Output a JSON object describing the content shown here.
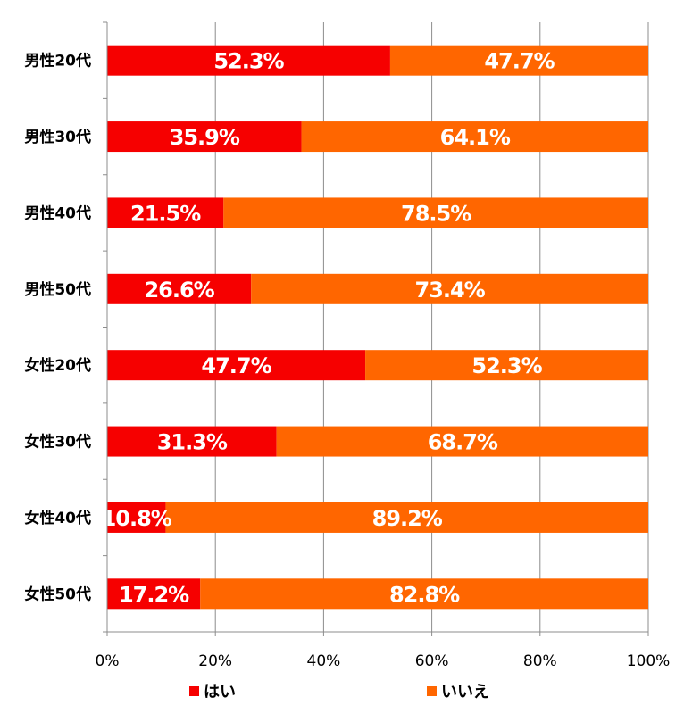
{
  "chart_data": {
    "type": "bar",
    "orientation": "horizontal",
    "stacked": true,
    "percent": true,
    "categories": [
      "男性20代",
      "男性30代",
      "男性40代",
      "男性50代",
      "女性20代",
      "女性30代",
      "女性40代",
      "女性50代"
    ],
    "series": [
      {
        "name": "はい",
        "color": "#f60000",
        "values": [
          52.3,
          35.9,
          21.5,
          26.6,
          47.7,
          31.3,
          10.8,
          17.2
        ]
      },
      {
        "name": "いいえ",
        "color": "#ff6600",
        "values": [
          47.7,
          64.1,
          78.5,
          73.4,
          52.3,
          68.7,
          89.2,
          82.8
        ]
      }
    ],
    "value_labels": [
      [
        "52.3%",
        "35.9%",
        "21.5%",
        "26.6%",
        "47.7%",
        "31.3%",
        "10.8%",
        "17.2%"
      ],
      [
        "47.7%",
        "64.1%",
        "78.5%",
        "73.4%",
        "52.3%",
        "68.7%",
        "89.2%",
        "82.8%"
      ]
    ],
    "x_ticks": [
      "0%",
      "20%",
      "40%",
      "60%",
      "80%",
      "100%"
    ],
    "xlim": [
      0,
      100
    ],
    "grid": true,
    "legend_position": "bottom",
    "title": "",
    "xlabel": "",
    "ylabel": ""
  }
}
